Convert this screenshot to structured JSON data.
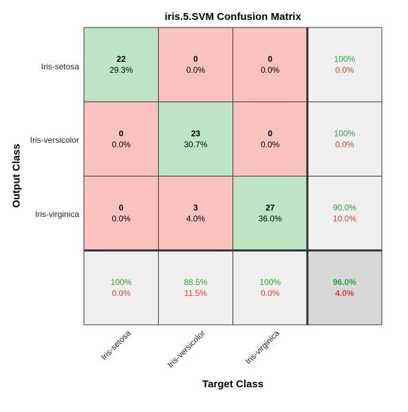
{
  "chart_data": {
    "type": "heatmap",
    "title": "iris.5.SVM Confusion Matrix",
    "xlabel": "Target Class",
    "ylabel": "Output Class",
    "classes": [
      "Iris-setosa",
      "Iris-versicolor",
      "Iris-virginica"
    ],
    "counts": [
      [
        22,
        0,
        0
      ],
      [
        0,
        23,
        0
      ],
      [
        0,
        3,
        27
      ]
    ],
    "percent_of_total": [
      [
        "29.3%",
        "0.0%",
        "0.0%"
      ],
      [
        "0.0%",
        "30.7%",
        "0.0%"
      ],
      [
        "0.0%",
        "4.0%",
        "36.0%"
      ]
    ],
    "row_summary": [
      {
        "correct": "100%",
        "incorrect": "0.0%"
      },
      {
        "correct": "100%",
        "incorrect": "0.0%"
      },
      {
        "correct": "90.0%",
        "incorrect": "10.0%"
      }
    ],
    "column_summary": [
      {
        "correct": "100%",
        "incorrect": "0.0%"
      },
      {
        "correct": "88.5%",
        "incorrect": "11.5%"
      },
      {
        "correct": "100%",
        "incorrect": "0.0%"
      }
    ],
    "overall": {
      "correct": "96.0%",
      "incorrect": "4.0%"
    },
    "colors": {
      "correct_cell": "#bde5c5",
      "incorrect_cell": "#f9c2bf",
      "summary_cell": "#f0f0f0",
      "overall_cell": "#d8d8d8",
      "correct_text": "#2ca038",
      "incorrect_text": "#d9413a",
      "grid": "#333333"
    }
  }
}
